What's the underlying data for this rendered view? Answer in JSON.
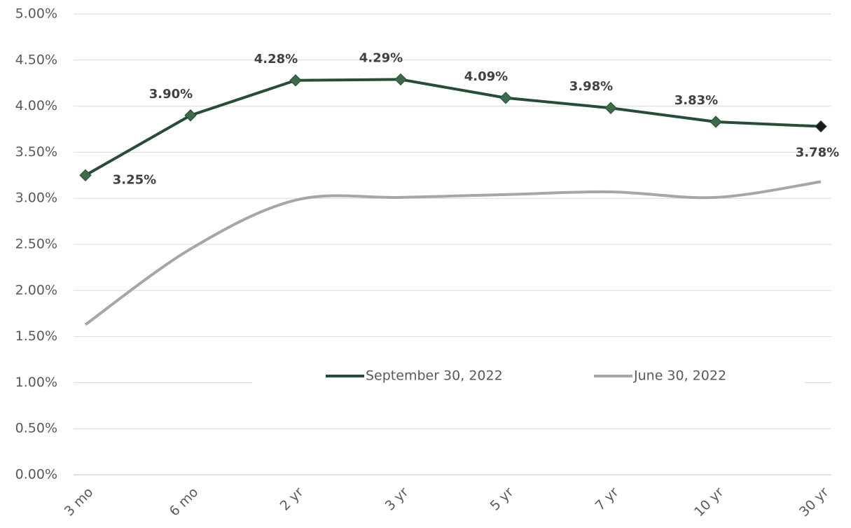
{
  "chart_data": {
    "type": "line",
    "categories": [
      "3 mo",
      "6 mo",
      "2 yr",
      "3 yr",
      "5 yr",
      "7 yr",
      "10 yr",
      "30 yr"
    ],
    "series": [
      {
        "name": "September 30, 2022",
        "color": "#264d36",
        "marker_color": "#3d6b47",
        "values": [
          3.25,
          3.9,
          4.28,
          4.29,
          4.09,
          3.98,
          3.83,
          3.78
        ],
        "value_labels": [
          "3.25%",
          "3.90%",
          "4.28%",
          "4.29%",
          "4.09%",
          "3.98%",
          "3.83%",
          "3.78%"
        ]
      },
      {
        "name": "June 30, 2022",
        "color": "#a6a6a6",
        "values": [
          1.63,
          2.45,
          2.98,
          3.01,
          3.04,
          3.07,
          3.01,
          3.18
        ]
      }
    ],
    "ylim": [
      0,
      5
    ],
    "yticks": [
      {
        "value": 0,
        "label": "0.00%"
      },
      {
        "value": 0.5,
        "label": "0.50%"
      },
      {
        "value": 1,
        "label": "1.00%"
      },
      {
        "value": 1.5,
        "label": "1.50%"
      },
      {
        "value": 2,
        "label": "2.00%"
      },
      {
        "value": 2.5,
        "label": "2.50%"
      },
      {
        "value": 3,
        "label": "3.00%"
      },
      {
        "value": 3.5,
        "label": "3.50%"
      },
      {
        "value": 4,
        "label": "4.00%"
      },
      {
        "value": 4.5,
        "label": "4.50%"
      },
      {
        "value": 5,
        "label": "5.00%"
      }
    ],
    "grid": true
  }
}
